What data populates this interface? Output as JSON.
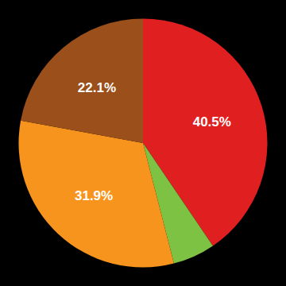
{
  "chart_data": {
    "type": "pie",
    "values": [
      40.5,
      5.5,
      31.9,
      22.1
    ],
    "value_labels": [
      "40.5%",
      null,
      "31.9%",
      "22.1%"
    ],
    "colors": [
      "#e02020",
      "#7dc242",
      "#f7941d",
      "#9b4f1a"
    ],
    "data_labels": true
  }
}
